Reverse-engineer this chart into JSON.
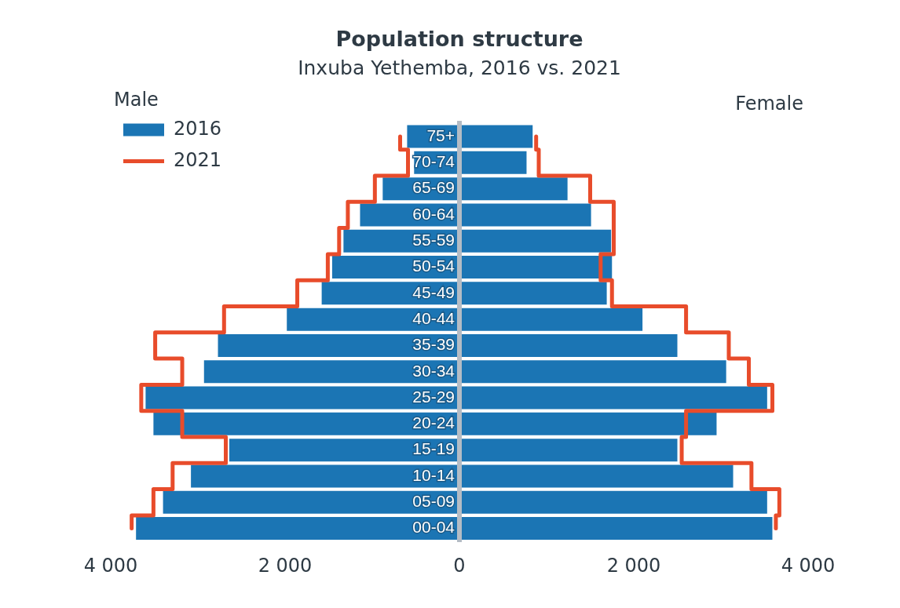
{
  "chart_data": {
    "type": "bar",
    "title": "Population structure",
    "subtitle": "Inxuba Yethemba, 2016 vs. 2021",
    "annotations": [
      "Male",
      "Female"
    ],
    "orientation": "horizontal",
    "stacked": true,
    "legend": "top left",
    "line_style": "solid",
    "categories": [
      "75+",
      "70-74",
      "65-69",
      "60-64",
      "55-59",
      "50-54",
      "45-49",
      "40-44",
      "35-39",
      "30-34",
      "25-29",
      "20-24",
      "15-19",
      "10-14",
      "05-09",
      "00-04"
    ],
    "series": [
      {
        "name": "2016",
        "color": "#1b75b4",
        "values": [
          -600,
          -520,
          -880,
          -1140,
          -1330,
          -1460,
          -1580,
          -1980,
          -2770,
          -2930,
          -3600,
          -3510,
          -2640,
          -3080,
          -3400,
          -3710
        ]
      },
      {
        "color": "#1b75b4",
        "values": [
          840,
          770,
          1240,
          1510,
          1740,
          1750,
          1690,
          2100,
          2500,
          3060,
          3530,
          2950,
          2500,
          3140,
          3530,
          3590
        ]
      },
      {
        "name": "2021",
        "type": "step",
        "color": "#e84c2b",
        "values": [
          -680,
          -590,
          -970,
          -1280,
          -1380,
          -1510,
          -1860,
          -2700,
          -3490,
          -3180,
          -3650,
          -3180,
          -2680,
          -3290,
          -3510,
          -3760
        ]
      },
      {
        "type": "step",
        "color": "#e84c2b",
        "values": [
          880,
          910,
          1500,
          1770,
          1770,
          1620,
          1750,
          2600,
          3090,
          3320,
          3590,
          2600,
          2550,
          3350,
          3670,
          3630
        ]
      }
    ],
    "xlim": [
      -4000,
      4000
    ],
    "xticks": [
      {
        "value": -4000,
        "label": "4 000"
      },
      {
        "value": -2000,
        "label": "2 000"
      },
      0,
      {
        "value": 2000,
        "label": "2 000"
      },
      {
        "value": 4000,
        "label": "4 000"
      }
    ]
  }
}
